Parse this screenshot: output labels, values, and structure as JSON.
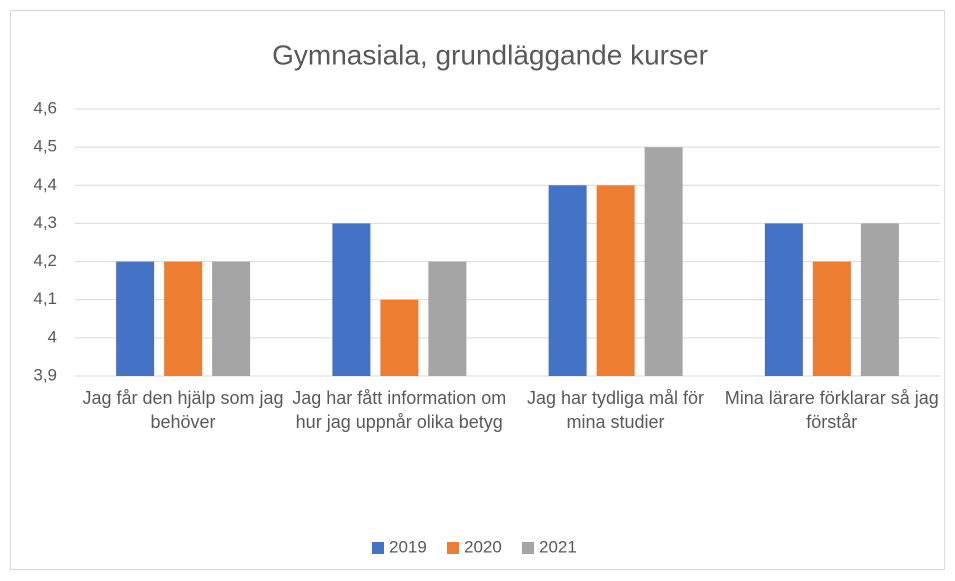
{
  "chart_data": {
    "type": "bar",
    "title": "Gymnasiala, grundläggande kurser",
    "categories": [
      "Jag får den hjälp som jag behöver",
      "Jag har fått information om hur jag uppnår olika betyg",
      "Jag har tydliga mål för mina studier",
      "Mina lärare förklarar så jag förstår"
    ],
    "series": [
      {
        "name": "2019",
        "color": "#4472c4",
        "values": [
          4.2,
          4.3,
          4.4,
          4.3
        ]
      },
      {
        "name": "2020",
        "color": "#ed7d31",
        "values": [
          4.2,
          4.1,
          4.4,
          4.2
        ]
      },
      {
        "name": "2021",
        "color": "#a5a5a5",
        "values": [
          4.2,
          4.2,
          4.5,
          4.3
        ]
      }
    ],
    "ylim": [
      3.9,
      4.6
    ],
    "yticks": [
      {
        "value": 3.9,
        "label": "3,9"
      },
      4,
      {
        "value": 4.1,
        "label": "4,1"
      },
      {
        "value": 4.2,
        "label": "4,2"
      },
      {
        "value": 4.3,
        "label": "4,3"
      },
      {
        "value": 4.4,
        "label": "4,4"
      },
      {
        "value": 4.5,
        "label": "4,5"
      },
      {
        "value": 4.6,
        "label": "4,6"
      }
    ],
    "grid": true,
    "legend": "bottom"
  }
}
